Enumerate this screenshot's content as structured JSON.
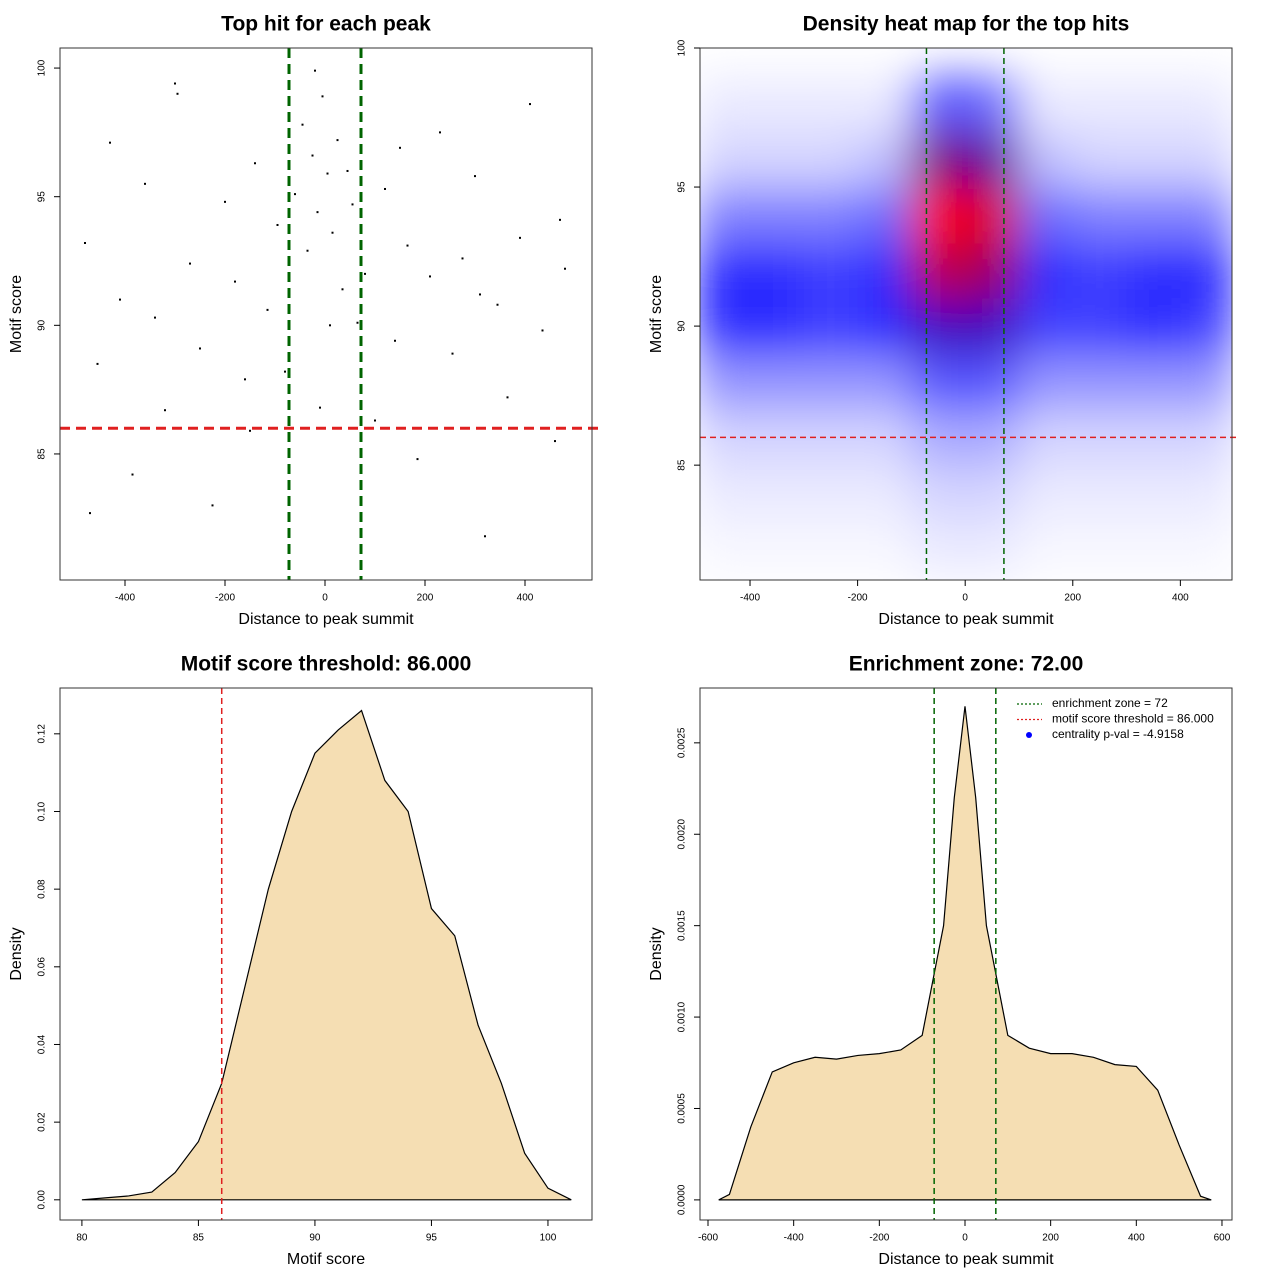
{
  "chart_data": [
    {
      "type": "scatter",
      "title": "Top hit for each peak",
      "xlabel": "Distance to peak summit",
      "ylabel": "Motif score",
      "xlim": [
        -530,
        534
      ],
      "ylim": [
        80.1,
        100.78
      ],
      "xticks": [
        -400,
        -200,
        0,
        200,
        400
      ],
      "yticks": [
        85,
        90,
        95,
        100
      ],
      "color": "#000000",
      "vlines": [
        -72,
        72
      ],
      "vline_color": "#006400",
      "hlines": [
        86
      ],
      "hline_color": "#e02020",
      "x": [
        -480,
        -455,
        -430,
        -410,
        -385,
        -360,
        -340,
        -320,
        -295,
        -270,
        -250,
        -225,
        -200,
        -180,
        -160,
        -140,
        -115,
        -95,
        -80,
        -60,
        -45,
        -35,
        -25,
        -15,
        -5,
        5,
        15,
        25,
        35,
        45,
        55,
        65,
        80,
        100,
        120,
        140,
        165,
        185,
        210,
        230,
        255,
        275,
        300,
        320,
        345,
        365,
        390,
        410,
        435,
        460,
        480,
        -470,
        -300,
        -150,
        -20,
        10,
        150,
        310,
        470,
        -10
      ],
      "y": [
        93.2,
        88.5,
        97.1,
        91.0,
        84.2,
        95.5,
        90.3,
        86.7,
        99.0,
        92.4,
        89.1,
        83.0,
        94.8,
        91.7,
        87.9,
        96.3,
        90.6,
        93.9,
        88.2,
        95.1,
        97.8,
        92.9,
        96.6,
        94.4,
        98.9,
        95.9,
        93.6,
        97.2,
        91.4,
        96.0,
        94.7,
        90.1,
        92.0,
        86.3,
        95.3,
        89.4,
        93.1,
        84.8,
        91.9,
        97.5,
        88.9,
        92.6,
        95.8,
        81.8,
        90.8,
        87.2,
        93.4,
        98.6,
        89.8,
        85.5,
        92.2,
        82.7,
        99.4,
        85.9,
        99.9,
        90.0,
        96.9,
        91.2,
        94.1,
        86.8
      ]
    },
    {
      "type": "heatmap",
      "title": "Density heat map for the top hits",
      "xlabel": "Distance to peak summit",
      "ylabel": "Motif score",
      "xlim": [
        -493,
        496
      ],
      "ylim": [
        80.87,
        100
      ],
      "xticks": [
        -400,
        -200,
        0,
        200,
        400
      ],
      "yticks": [
        85,
        90,
        95,
        100
      ],
      "vlines": [
        -72,
        72
      ],
      "vline_color": "#006400",
      "hlines": [
        86
      ],
      "hline_color": "#e02020",
      "x": [
        -450,
        -350,
        -250,
        -150,
        -50,
        50,
        150,
        250,
        350,
        450
      ],
      "x_step": 100,
      "y": [
        82,
        84,
        86,
        88,
        90,
        92,
        94,
        96,
        98
      ],
      "y_step": 2,
      "z": [
        [
          0.02,
          0.02,
          0.02,
          0.02,
          0.05,
          0.05,
          0.02,
          0.02,
          0.02,
          0.02
        ],
        [
          0.05,
          0.05,
          0.05,
          0.05,
          0.1,
          0.1,
          0.05,
          0.05,
          0.05,
          0.05
        ],
        [
          0.1,
          0.1,
          0.1,
          0.1,
          0.2,
          0.2,
          0.1,
          0.1,
          0.1,
          0.1
        ],
        [
          0.25,
          0.25,
          0.25,
          0.25,
          0.4,
          0.4,
          0.25,
          0.25,
          0.25,
          0.25
        ],
        [
          0.5,
          0.5,
          0.45,
          0.5,
          0.7,
          0.7,
          0.45,
          0.45,
          0.5,
          0.45
        ],
        [
          0.5,
          0.5,
          0.45,
          0.5,
          0.9,
          0.85,
          0.5,
          0.45,
          0.5,
          0.5
        ],
        [
          0.3,
          0.3,
          0.3,
          0.35,
          1.0,
          0.95,
          0.35,
          0.3,
          0.3,
          0.3
        ],
        [
          0.1,
          0.1,
          0.1,
          0.15,
          0.8,
          0.75,
          0.15,
          0.1,
          0.1,
          0.1
        ],
        [
          0.05,
          0.05,
          0.05,
          0.05,
          0.4,
          0.35,
          0.05,
          0.05,
          0.05,
          0.05
        ]
      ]
    },
    {
      "type": "density",
      "title": "Motif score threshold: 86.000",
      "xlabel": "Motif score",
      "ylabel": "Density",
      "xlim": [
        79.06,
        101.89
      ],
      "ylim": [
        -0.0052,
        0.1318
      ],
      "xticks": [
        80,
        85,
        90,
        95,
        100
      ],
      "yticks": [
        {
          "value": 0,
          "label": "0.00"
        },
        0.02,
        0.04,
        0.06,
        0.08,
        {
          "value": 0.1,
          "label": "0.10"
        },
        0.12
      ],
      "color": "#f5deb3",
      "vlines": [
        86
      ],
      "vline_color": "#e02020",
      "x": [
        80,
        81,
        82,
        83,
        84,
        85,
        86,
        87,
        88,
        89,
        90,
        91,
        92,
        93,
        94,
        95,
        96,
        97,
        98,
        99,
        100,
        101
      ],
      "values": [
        0,
        0.0005,
        0.001,
        0.002,
        0.007,
        0.015,
        0.03,
        0.055,
        0.08,
        0.1,
        0.115,
        0.121,
        0.126,
        0.108,
        0.1,
        0.075,
        0.068,
        0.045,
        0.03,
        0.012,
        0.003,
        0
      ]
    },
    {
      "type": "density",
      "title": "Enrichment zone: 72.00",
      "xlabel": "Distance to peak summit",
      "ylabel": "Density",
      "xlim": [
        -618.7,
        623.4
      ],
      "ylim": [
        -0.00011,
        0.0028
      ],
      "xticks": [
        -600,
        -400,
        -200,
        0,
        200,
        400,
        600
      ],
      "yticks": [
        {
          "value": 0,
          "label": "0.0000"
        },
        0.0005,
        {
          "value": 0.001,
          "label": "0.0010"
        },
        0.0015,
        {
          "value": 0.002,
          "label": "0.0020"
        },
        0.0025
      ],
      "color": "#f5deb3",
      "vlines": [
        -72,
        72
      ],
      "vline_color": "#006400",
      "x": [
        -575,
        -550,
        -500,
        -450,
        -400,
        -350,
        -300,
        -250,
        -200,
        -150,
        -100,
        -50,
        -25,
        0,
        25,
        50,
        100,
        150,
        200,
        250,
        300,
        350,
        400,
        450,
        500,
        550,
        575
      ],
      "values": [
        0,
        3e-05,
        0.0004,
        0.0007,
        0.00075,
        0.00078,
        0.00077,
        0.00079,
        0.0008,
        0.00082,
        0.0009,
        0.0015,
        0.0022,
        0.0027,
        0.0022,
        0.0015,
        0.0009,
        0.00083,
        0.0008,
        0.0008,
        0.00078,
        0.00074,
        0.00073,
        0.0006,
        0.0003,
        2e-05,
        0
      ],
      "legend_position": "top-right",
      "legend": [
        {
          "label": "enrichment zone = 72",
          "color": "#006400",
          "symbol": "line"
        },
        {
          "label": "motif score threshold = 86.000",
          "color": "#e02020",
          "symbol": "line"
        },
        {
          "label": "centrality p-val = -4.9158",
          "color": "#0000ff",
          "symbol": "dot"
        }
      ]
    }
  ]
}
